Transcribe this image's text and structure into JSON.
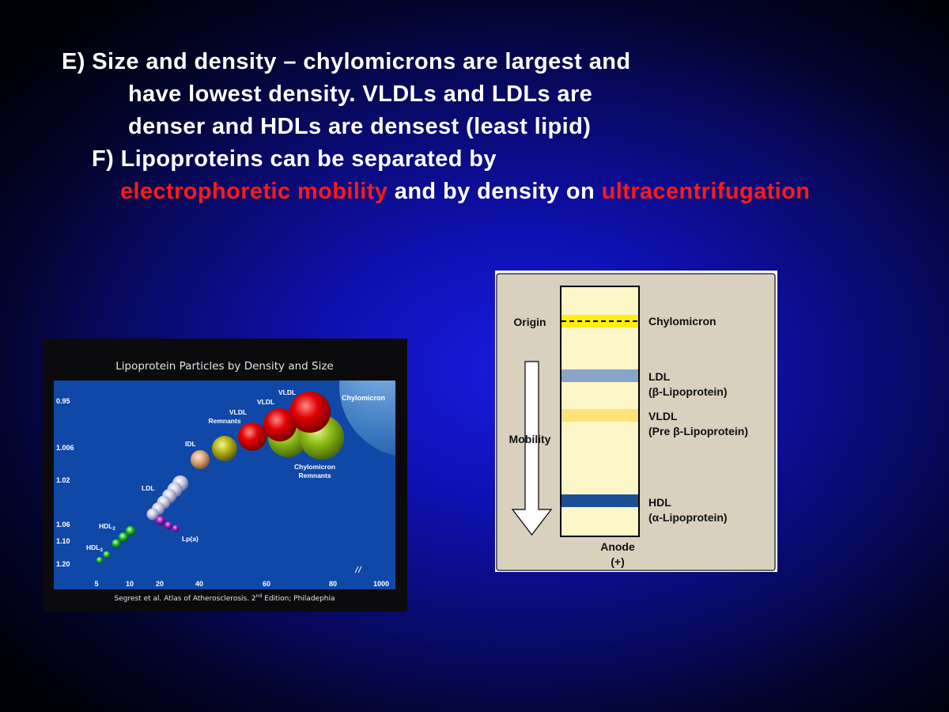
{
  "text": {
    "e_line1": "E) Size and density – chylomicrons are largest and",
    "e_line2": "have lowest density. VLDLs and LDLs are",
    "e_line3": "denser and HDLs are densest (least lipid)",
    "f_line1": "F) Lipoproteins can be separated by",
    "f_line2_red1": "electrophoretic mobility",
    "f_line2_mid": " and by density on ",
    "f_line2_red2": "ultracentrifugation"
  },
  "colors": {
    "accent_red": "#ff1a1a",
    "plot_blue": "#1048a8",
    "panel_tan": "#d9d0be",
    "lane_cream": "#fdf7c8"
  },
  "bubble_chart": {
    "title": "Lipoprotein Particles by Density and Size",
    "credit_pre": "Segrest et al. Atlas of Atherosclerosis. 2",
    "credit_sup": "nd",
    "credit_post": " Edition; Philadephia",
    "y_ticks": [
      "0.95",
      "1.006",
      "1.02",
      "1.06",
      "1.10",
      "1.20"
    ],
    "x_ticks": [
      "5",
      "10",
      "20",
      "40",
      "60",
      "80",
      "1000"
    ],
    "labels": {
      "chylomicron": "Chylomicron",
      "vldl_a": "VLDL",
      "vldl_b": "VLDL",
      "vldl_remnants_1": "VLDL",
      "vldl_remnants_2": "Remnants",
      "idl": "IDL",
      "ldl": "LDL",
      "hdl2": "HDL",
      "hdl2_sub": "2",
      "hdl3": "HDL",
      "hdl3_sub": "3",
      "lpa": "Lp(a)",
      "chylo_remnants_1": "Chylomicron",
      "chylo_remnants_2": "Remnants"
    }
  },
  "electrophoresis": {
    "origin": "Origin",
    "mobility": "Mobility",
    "anode": "Anode",
    "anode_sign": "(+)",
    "bands": {
      "chylomicron": "Chylomicron",
      "ldl": "LDL",
      "ldl_sub": "(β-Lipoprotein)",
      "vldl": "VLDL",
      "vldl_sub": "(Pre β-Lipoprotein)",
      "hdl": "HDL",
      "hdl_sub": "(α-Lipoprotein)"
    }
  }
}
